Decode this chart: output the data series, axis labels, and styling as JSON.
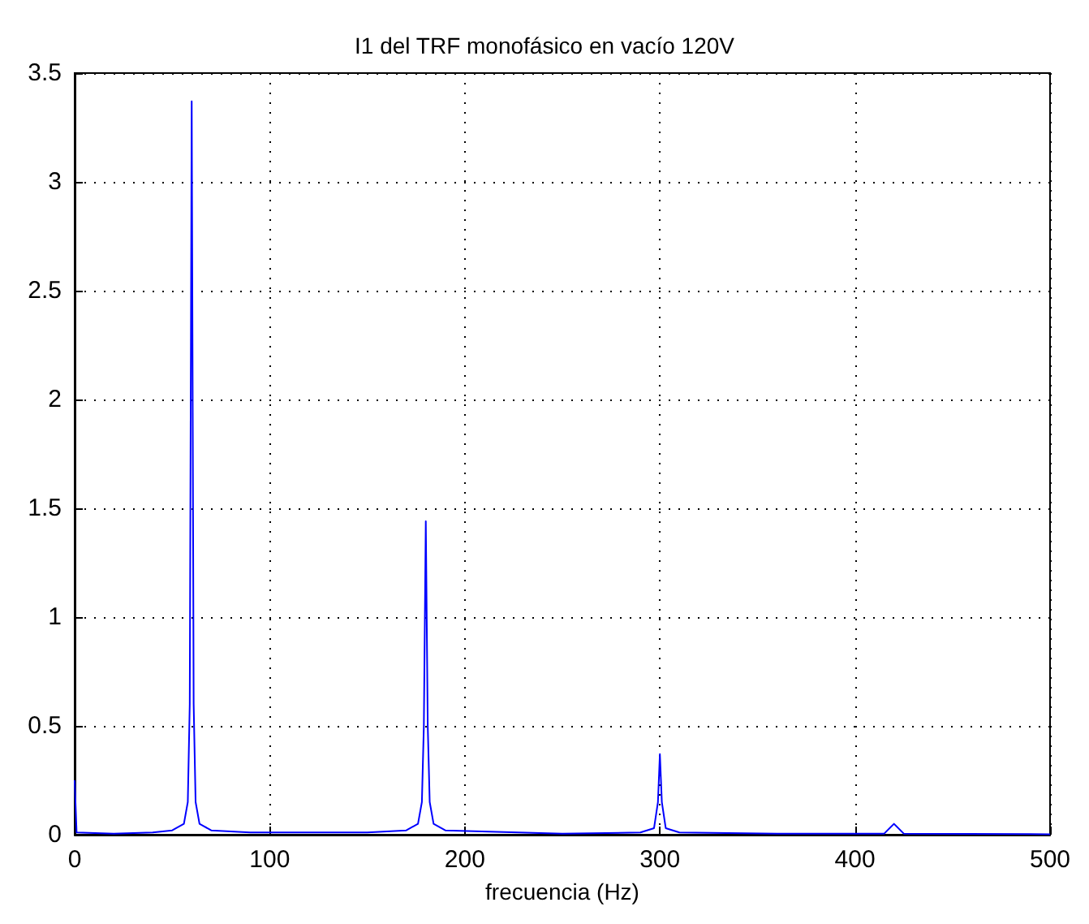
{
  "chart_data": {
    "type": "line",
    "title": "I1 del TRF monofásico en vacío 120V",
    "xlabel": "frecuencia (Hz)",
    "x": [
      0,
      1,
      20,
      40,
      50,
      56,
      58,
      59,
      60,
      61,
      62,
      64,
      70,
      90,
      120,
      150,
      170,
      176,
      178,
      179,
      180,
      181,
      182,
      184,
      190,
      250,
      290,
      297,
      299,
      300,
      301,
      303,
      310,
      360,
      415,
      420,
      425,
      500
    ],
    "series": [
      {
        "color": "#0000ff",
        "values": [
          0.25,
          0.01,
          0.005,
          0.01,
          0.02,
          0.05,
          0.15,
          0.6,
          3.37,
          0.6,
          0.15,
          0.05,
          0.02,
          0.01,
          0.01,
          0.01,
          0.02,
          0.05,
          0.15,
          0.5,
          1.44,
          0.5,
          0.15,
          0.05,
          0.02,
          0.005,
          0.01,
          0.03,
          0.15,
          0.37,
          0.15,
          0.03,
          0.01,
          0.005,
          0.005,
          0.05,
          0.005,
          0.002
        ]
      }
    ],
    "xlim": [
      0,
      500
    ],
    "xticks": [
      0,
      100,
      200,
      300,
      400,
      500
    ],
    "ylim": [
      0,
      3.5
    ],
    "yticks": [
      0,
      0.5,
      1,
      1.5,
      2,
      2.5,
      3,
      3.5
    ],
    "grid": true,
    "marker": "none",
    "line_style": "solid"
  }
}
